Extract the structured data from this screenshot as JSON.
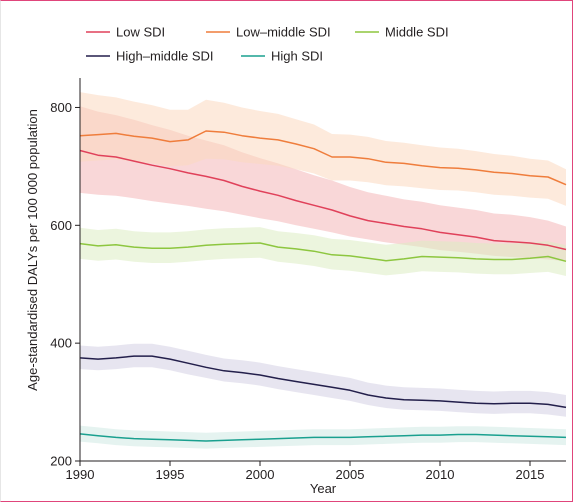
{
  "chart_data": {
    "type": "line",
    "title": "",
    "xlabel": "Year",
    "ylabel": "Age-standardised DALYs per 100 000 population",
    "xlim": [
      1990,
      2017
    ],
    "ylim": [
      200,
      850
    ],
    "x_ticks": [
      1990,
      1995,
      2000,
      2005,
      2010,
      2015
    ],
    "y_ticks": [
      200,
      400,
      600,
      800
    ],
    "legend_position": "top",
    "x": [
      1990,
      1991,
      1992,
      1993,
      1994,
      1995,
      1996,
      1997,
      1998,
      1999,
      2000,
      2001,
      2002,
      2003,
      2004,
      2005,
      2006,
      2007,
      2008,
      2009,
      2010,
      2011,
      2012,
      2013,
      2014,
      2015,
      2016,
      2017
    ],
    "series": [
      {
        "name": "Low SDI",
        "color": "#e0415a",
        "band_color": "#f4b6b8",
        "values": [
          727,
          719,
          716,
          709,
          702,
          696,
          689,
          683,
          676,
          666,
          658,
          651,
          642,
          634,
          626,
          616,
          608,
          603,
          598,
          594,
          588,
          584,
          580,
          574,
          572,
          570,
          566,
          559
        ],
        "lower": [
          655,
          652,
          650,
          646,
          641,
          637,
          633,
          628,
          624,
          618,
          612,
          607,
          600,
          594,
          588,
          581,
          576,
          571,
          567,
          563,
          558,
          555,
          552,
          548,
          546,
          544,
          542,
          539
        ],
        "upper": [
          802,
          793,
          787,
          779,
          770,
          762,
          752,
          744,
          736,
          724,
          714,
          705,
          695,
          685,
          676,
          665,
          656,
          650,
          644,
          640,
          634,
          630,
          626,
          620,
          618,
          614,
          608,
          598
        ]
      },
      {
        "name": "Low–middle SDI",
        "color": "#ef7d3c",
        "band_color": "#fbd8bf",
        "values": [
          752,
          754,
          756,
          751,
          748,
          742,
          745,
          760,
          758,
          752,
          748,
          745,
          738,
          730,
          716,
          716,
          713,
          707,
          705,
          701,
          698,
          697,
          694,
          690,
          688,
          684,
          682,
          669
        ],
        "lower": [
          708,
          710,
          712,
          708,
          705,
          700,
          702,
          713,
          712,
          707,
          704,
          701,
          695,
          688,
          676,
          676,
          673,
          668,
          666,
          663,
          660,
          659,
          656,
          652,
          650,
          647,
          645,
          633
        ],
        "upper": [
          826,
          821,
          817,
          810,
          804,
          796,
          796,
          813,
          808,
          800,
          794,
          789,
          780,
          771,
          755,
          754,
          750,
          743,
          740,
          736,
          732,
          730,
          726,
          721,
          718,
          713,
          710,
          695
        ]
      },
      {
        "name": "Middle SDI",
        "color": "#8dc63f",
        "band_color": "#dcedc2",
        "values": [
          569,
          565,
          567,
          563,
          561,
          561,
          563,
          566,
          568,
          569,
          570,
          563,
          560,
          556,
          550,
          548,
          544,
          540,
          543,
          547,
          546,
          545,
          543,
          542,
          542,
          544,
          547,
          539
        ],
        "lower": [
          543,
          540,
          542,
          538,
          536,
          536,
          538,
          541,
          543,
          544,
          545,
          538,
          535,
          531,
          525,
          523,
          519,
          515,
          518,
          522,
          521,
          520,
          518,
          517,
          517,
          519,
          521,
          514
        ],
        "upper": [
          596,
          592,
          594,
          590,
          588,
          588,
          590,
          593,
          595,
          596,
          597,
          590,
          587,
          583,
          577,
          575,
          571,
          567,
          570,
          574,
          573,
          572,
          570,
          569,
          569,
          571,
          573,
          566
        ]
      },
      {
        "name": "High–middle SDI",
        "color": "#231f4b",
        "band_color": "#d3d0e3",
        "values": [
          375,
          373,
          375,
          378,
          378,
          373,
          366,
          359,
          353,
          350,
          346,
          340,
          335,
          330,
          325,
          320,
          312,
          307,
          304,
          303,
          302,
          300,
          298,
          297,
          298,
          298,
          296,
          291
        ],
        "lower": [
          356,
          354,
          356,
          359,
          359,
          354,
          347,
          341,
          335,
          332,
          328,
          322,
          317,
          312,
          307,
          302,
          295,
          290,
          287,
          286,
          285,
          283,
          281,
          280,
          281,
          281,
          279,
          275
        ],
        "upper": [
          396,
          394,
          396,
          399,
          399,
          394,
          387,
          380,
          374,
          371,
          367,
          361,
          356,
          351,
          346,
          341,
          333,
          328,
          325,
          324,
          323,
          321,
          319,
          318,
          319,
          319,
          317,
          312
        ]
      },
      {
        "name": "High SDI",
        "color": "#1aa08f",
        "band_color": "#cfe9e3",
        "values": [
          246,
          243,
          240,
          238,
          237,
          236,
          235,
          234,
          235,
          236,
          237,
          238,
          239,
          240,
          240,
          240,
          241,
          242,
          243,
          244,
          244,
          245,
          245,
          244,
          243,
          242,
          241,
          240
        ],
        "lower": [
          233,
          230,
          227,
          225,
          224,
          223,
          222,
          221,
          222,
          223,
          224,
          225,
          226,
          227,
          227,
          227,
          228,
          229,
          230,
          231,
          231,
          232,
          232,
          231,
          230,
          229,
          228,
          227
        ],
        "upper": [
          260,
          257,
          254,
          252,
          251,
          250,
          249,
          248,
          249,
          250,
          251,
          252,
          253,
          254,
          254,
          254,
          255,
          256,
          257,
          258,
          258,
          259,
          259,
          258,
          257,
          256,
          255,
          254
        ]
      }
    ]
  }
}
